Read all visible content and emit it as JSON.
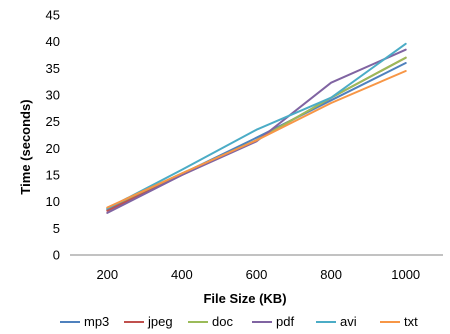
{
  "chart_data": {
    "type": "line",
    "title": "",
    "xlabel": "File Size (KB)",
    "ylabel": "Time (seconds)",
    "x": [
      200,
      400,
      600,
      800,
      1000
    ],
    "ylim": [
      0,
      45
    ],
    "yticks": [
      0,
      5,
      10,
      15,
      20,
      25,
      30,
      35,
      40,
      45
    ],
    "grid": false,
    "legend_position": "bottom",
    "series": [
      {
        "name": "mp3",
        "color": "#4F81BD",
        "values": [
          8.5,
          15.2,
          22.0,
          29.0,
          36.0
        ]
      },
      {
        "name": "jpeg",
        "color": "#C0504D",
        "values": [
          8.3,
          15.0,
          21.5,
          29.5,
          37.0
        ]
      },
      {
        "name": "doc",
        "color": "#9BBB59",
        "values": [
          8.8,
          15.3,
          21.5,
          29.5,
          37.0
        ]
      },
      {
        "name": "pdf",
        "color": "#8064A2",
        "values": [
          7.9,
          15.0,
          21.3,
          32.3,
          38.5
        ]
      },
      {
        "name": "avi",
        "color": "#4BACC6",
        "values": [
          8.7,
          16.0,
          23.5,
          29.5,
          39.6
        ]
      },
      {
        "name": "txt",
        "color": "#F79646",
        "values": [
          8.9,
          15.3,
          21.5,
          28.5,
          34.5
        ]
      }
    ]
  }
}
